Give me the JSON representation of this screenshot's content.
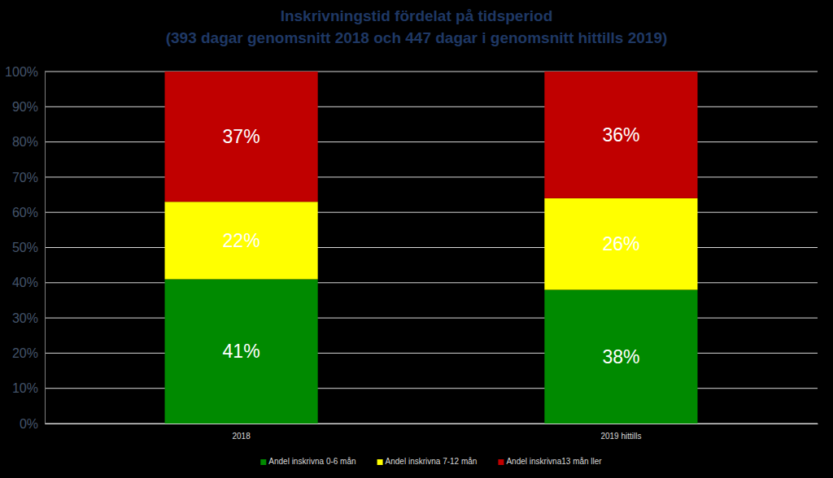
{
  "chart_data": {
    "type": "bar",
    "title": "Inskrivningstid fördelat på tidsperiod",
    "subtitle": "(393 dagar genomsnitt 2018 och 447 dagar i genomsnitt hittills 2019)",
    "categories": [
      "2018",
      "2019 hittills"
    ],
    "series": [
      {
        "name": "Andel inskrivna 0-6 mån",
        "color": "#008a00",
        "values": [
          41,
          38
        ],
        "value_labels": [
          "41%",
          "38%"
        ]
      },
      {
        "name": "Andel inskrivna 7-12 mån",
        "color": "#ffff00",
        "values": [
          22,
          26
        ],
        "value_labels": [
          "22%",
          "26%"
        ]
      },
      {
        "name": "Andel inskrivna13 mån ller",
        "color": "#c00000",
        "values": [
          37,
          36
        ],
        "value_labels": [
          "37%",
          "36%"
        ]
      }
    ],
    "ylim": [
      0,
      100
    ],
    "yticks": [
      {
        "value": 0,
        "label": "0%"
      },
      {
        "value": 10,
        "label": "10%"
      },
      {
        "value": 20,
        "label": "20%"
      },
      {
        "value": 30,
        "label": "30%"
      },
      {
        "value": 40,
        "label": "40%"
      },
      {
        "value": 50,
        "label": "50%"
      },
      {
        "value": 60,
        "label": "60%"
      },
      {
        "value": 70,
        "label": "70%"
      },
      {
        "value": 80,
        "label": "80%"
      },
      {
        "value": 90,
        "label": "90%"
      },
      {
        "value": 100,
        "label": "100%"
      }
    ],
    "stacked": true,
    "grid": true,
    "data_labels": true,
    "legend": "bottom"
  }
}
